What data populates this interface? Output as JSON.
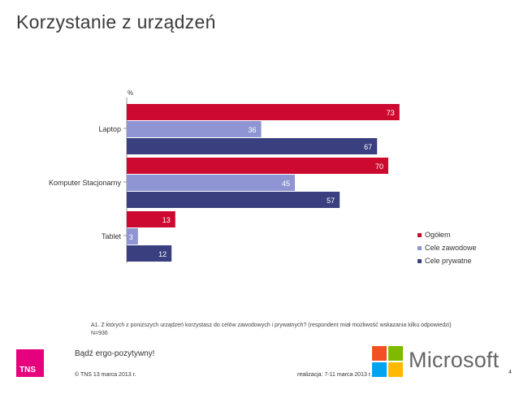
{
  "title": "Korzystanie z urządzeń",
  "chart_data": {
    "type": "bar",
    "orientation": "horizontal",
    "unit": "%",
    "categories": [
      "Laptop",
      "Komputer Stacjonarny",
      "Tablet"
    ],
    "series": [
      {
        "name": "Ogółem",
        "color": "#cc0a2f",
        "values": [
          73,
          70,
          13
        ]
      },
      {
        "name": "Cele zawodowe",
        "color": "#8f95d3",
        "values": [
          36,
          45,
          3
        ]
      },
      {
        "name": "Cele prywatne",
        "color": "#3a3f7f",
        "values": [
          67,
          57,
          12
        ]
      }
    ],
    "xlim": [
      0,
      100
    ],
    "grid": false,
    "legend": "right"
  },
  "question": "A1. Z których z poniższych urządzeń korzystasz do celów zawodowych i prywatnych? (respondent miał możliwość wskazania kilku odpowiedzi)",
  "base": "N=936",
  "footer": {
    "tns_logo": "TNS",
    "slogan": "Bądź ergo-pozytywny!",
    "copyright": "© TNS   13 marca 2013 r.",
    "fieldwork": "realizacja: 7-11 marca 2013 r.",
    "page": "4",
    "microsoft": "Microsoft",
    "ms_colors": [
      "#f25022",
      "#7fba00",
      "#00a4ef",
      "#ffb900"
    ]
  }
}
